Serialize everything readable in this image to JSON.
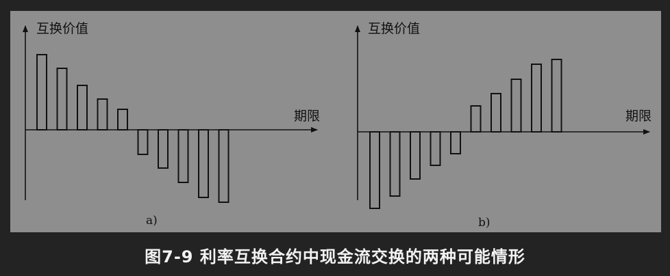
{
  "caption": "图7-9 利率互换合约中现金流交换的两种可能情形",
  "colors": {
    "background": "#232323",
    "panel": "#8e8e8e",
    "ink": "#111111",
    "caption": "#f2f2f2"
  },
  "chart_data": [
    {
      "type": "bar",
      "xlabel": "期限",
      "ylabel": "互换价值",
      "sublabel": "a)",
      "ylim": [
        -115,
        125
      ],
      "grid": false,
      "values": [
        110,
        90,
        65,
        45,
        30,
        -36,
        -56,
        -77,
        -99,
        -106
      ]
    },
    {
      "type": "bar",
      "xlabel": "期限",
      "ylabel": "互换价值",
      "sublabel": "b)",
      "ylim": [
        -115,
        125
      ],
      "grid": false,
      "values": [
        -112,
        -94,
        -69,
        -49,
        -32,
        38,
        56,
        77,
        99,
        106
      ]
    }
  ]
}
